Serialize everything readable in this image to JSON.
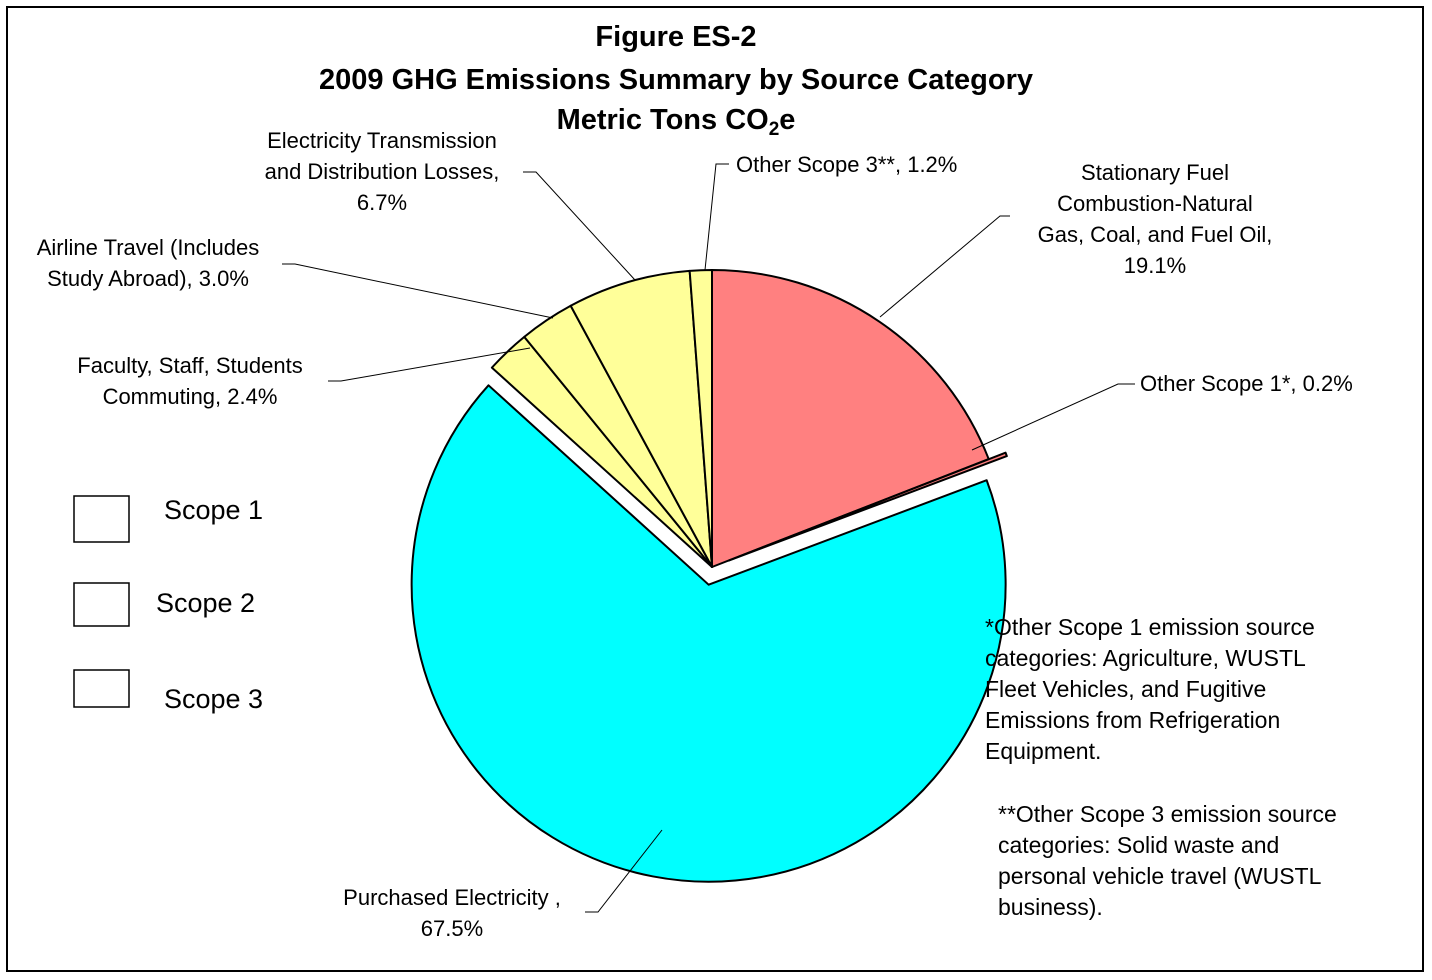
{
  "chart_data": {
    "type": "pie",
    "title": "Figure ES-2",
    "subtitle": "2009 GHG Emissions Summary by Source Category",
    "unit_line": {
      "prefix": "Metric Tons CO",
      "subscript": "2",
      "suffix": "e"
    },
    "slices": [
      {
        "name": "Stationary Fuel Combustion-Natural Gas, Coal, and Fuel Oil",
        "value": 19.1,
        "label_lines": [
          "Stationary Fuel",
          "Combustion-Natural",
          "Gas, Coal, and Fuel Oil,",
          "19.1%"
        ],
        "color": "#FF8080",
        "scope": "Scope 1",
        "exploded": false
      },
      {
        "name": "Other Scope 1*",
        "value": 0.2,
        "label_lines": [
          "Other Scope 1*, 0.2%"
        ],
        "color": "#FF8080",
        "scope": "Scope 1",
        "exploded": true
      },
      {
        "name": "Purchased Electricity",
        "value": 67.5,
        "label_lines": [
          "Purchased Electricity ,",
          "67.5%"
        ],
        "color": "#00FFFF",
        "scope": "Scope 2",
        "exploded": true
      },
      {
        "name": "Faculty, Staff, Students Commuting",
        "value": 2.4,
        "label_lines": [
          "Faculty, Staff, Students",
          "Commuting, 2.4%"
        ],
        "color": "#FFFF99",
        "scope": "Scope 3",
        "exploded": false
      },
      {
        "name": "Airline Travel (Includes Study Abroad)",
        "value": 3.0,
        "label_lines": [
          "Airline Travel (Includes",
          "Study Abroad), 3.0%"
        ],
        "color": "#FFFF99",
        "scope": "Scope 3",
        "exploded": false
      },
      {
        "name": "Electricity Transmission and Distribution Losses",
        "value": 6.7,
        "label_lines": [
          "Electricity Transmission",
          "and Distribution Losses,",
          "6.7%"
        ],
        "color": "#FFFF99",
        "scope": "Scope 3",
        "exploded": false
      },
      {
        "name": "Other Scope 3**",
        "value": 1.2,
        "label_lines": [
          "Other Scope 3**, 1.2%"
        ],
        "color": "#FFFF99",
        "scope": "Scope 3",
        "exploded": false
      }
    ],
    "legend": {
      "placement": "left",
      "entries": [
        "Scope 1",
        "Scope 2",
        "Scope 3"
      ],
      "swatch_color": "#FFFFFF"
    },
    "footnotes": [
      {
        "lines": [
          "*Other Scope 1 emission source",
          "categories: Agriculture, WUSTL",
          "Fleet Vehicles, and Fugitive",
          "Emissions from Refrigeration",
          "Equipment."
        ]
      },
      {
        "lines": [
          "**Other Scope 3 emission source",
          "categories: Solid waste and",
          "personal vehicle travel (WUSTL",
          "business)."
        ]
      }
    ]
  }
}
